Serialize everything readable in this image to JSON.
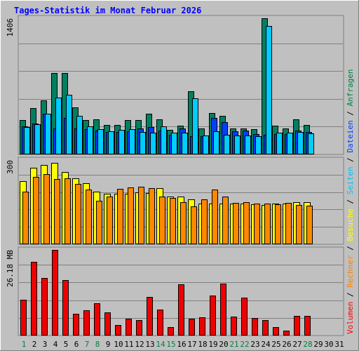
{
  "title": "Tages-Statistik im Monat Februar 2026",
  "legend": [
    {
      "text": "Volumen",
      "color": "#ff0000"
    },
    {
      "text": " / ",
      "color": "#000000"
    },
    {
      "text": "Rechner",
      "color": "#ff8000"
    },
    {
      "text": " / ",
      "color": "#000000"
    },
    {
      "text": "Besuche",
      "color": "#ffff00"
    },
    {
      "text": " / ",
      "color": "#000000"
    },
    {
      "text": "Seiten",
      "color": "#00c0ff"
    },
    {
      "text": " / ",
      "color": "#000000"
    },
    {
      "text": "Dateien",
      "color": "#0040ff"
    },
    {
      "text": " / ",
      "color": "#000000"
    },
    {
      "text": "Anfragen",
      "color": "#008040"
    }
  ],
  "colors": {
    "anfragen": "#008060",
    "dateien": "#0040ff",
    "seiten": "#00ccff",
    "besuche": "#ffff00",
    "rechner": "#ff8800",
    "volumen": "#ee0000",
    "weekend_label": "#008040",
    "weekday_label": "#000000"
  },
  "chart_data": [
    {
      "type": "bar",
      "panel": "top",
      "max_label": "1406",
      "ylim": [
        0,
        1406
      ],
      "categories": [
        "1",
        "2",
        "3",
        "4",
        "5",
        "6",
        "7",
        "8",
        "9",
        "10",
        "11",
        "12",
        "13",
        "14",
        "15",
        "16",
        "17",
        "18",
        "19",
        "20",
        "21",
        "22",
        "23",
        "24",
        "25",
        "26",
        "27",
        "28",
        "29",
        "30",
        "31"
      ],
      "weekend_days": [
        "1",
        "7",
        "8",
        "14",
        "15",
        "21",
        "22",
        "28"
      ],
      "series": [
        {
          "name": "Anfragen",
          "values": [
            357,
            475,
            555,
            842,
            842,
            483,
            357,
            365,
            301,
            301,
            357,
            357,
            420,
            365,
            254,
            294,
            651,
            269,
            428,
            397,
            270,
            270,
            262,
            1406,
            294,
            270,
            365,
            301,
            null,
            null,
            null
          ]
        },
        {
          "name": "Dateien",
          "values": [
            290,
            320,
            420,
            270,
            380,
            265,
            260,
            250,
            230,
            230,
            240,
            270,
            280,
            250,
            200,
            270,
            190,
            190,
            380,
            330,
            240,
            250,
            210,
            200,
            210,
            210,
            250,
            230,
            null,
            null,
            null
          ]
        },
        {
          "name": "Seiten",
          "values": [
            286,
            309,
            420,
            587,
            619,
            396,
            293,
            260,
            238,
            254,
            262,
            230,
            222,
            293,
            222,
            222,
            579,
            198,
            238,
            206,
            198,
            198,
            190,
            1326,
            222,
            222,
            230,
            214,
            null,
            null,
            null
          ]
        }
      ]
    },
    {
      "type": "bar",
      "panel": "middle",
      "max_label": "300",
      "ylim": [
        0,
        300
      ],
      "categories": [
        "1",
        "2",
        "3",
        "4",
        "5",
        "6",
        "7",
        "8",
        "9",
        "10",
        "11",
        "12",
        "13",
        "14",
        "15",
        "16",
        "17",
        "18",
        "19",
        "20",
        "21",
        "22",
        "23",
        "24",
        "25",
        "26",
        "27",
        "28",
        "29",
        "30",
        "31"
      ],
      "series": [
        {
          "name": "Besuche",
          "values": [
            226,
            273,
            282,
            291,
            258,
            235,
            217,
            187,
            180,
            180,
            180,
            185,
            182,
            200,
            170,
            170,
            160,
            145,
            145,
            145,
            145,
            145,
            143,
            141,
            145,
            145,
            150,
            150,
            null,
            null,
            null
          ]
        },
        {
          "name": "Rechner",
          "values": [
            188,
            240,
            250,
            232,
            235,
            215,
            195,
            155,
            170,
            198,
            202,
            205,
            200,
            170,
            165,
            150,
            135,
            160,
            195,
            170,
            148,
            150,
            145,
            145,
            143,
            148,
            140,
            138,
            null,
            null,
            null
          ]
        }
      ]
    },
    {
      "type": "bar",
      "panel": "bottom",
      "max_label": "26.18 MB",
      "ylim": [
        0,
        26.18
      ],
      "unit": "MB",
      "categories": [
        "1",
        "2",
        "3",
        "4",
        "5",
        "6",
        "7",
        "8",
        "9",
        "10",
        "11",
        "12",
        "13",
        "14",
        "15",
        "16",
        "17",
        "18",
        "19",
        "20",
        "21",
        "22",
        "23",
        "24",
        "25",
        "26",
        "27",
        "28",
        "29",
        "30",
        "31"
      ],
      "series": [
        {
          "name": "Volumen",
          "values": [
            11.0,
            22.6,
            17.5,
            26.18,
            17.0,
            6.6,
            7.8,
            9.9,
            7.0,
            3.3,
            5.1,
            4.8,
            11.9,
            7.9,
            2.6,
            15.6,
            5.1,
            5.5,
            12.3,
            15.8,
            5.8,
            11.5,
            5.4,
            4.8,
            2.6,
            1.6,
            6.0,
            6.0,
            null,
            null,
            null
          ]
        }
      ]
    }
  ]
}
